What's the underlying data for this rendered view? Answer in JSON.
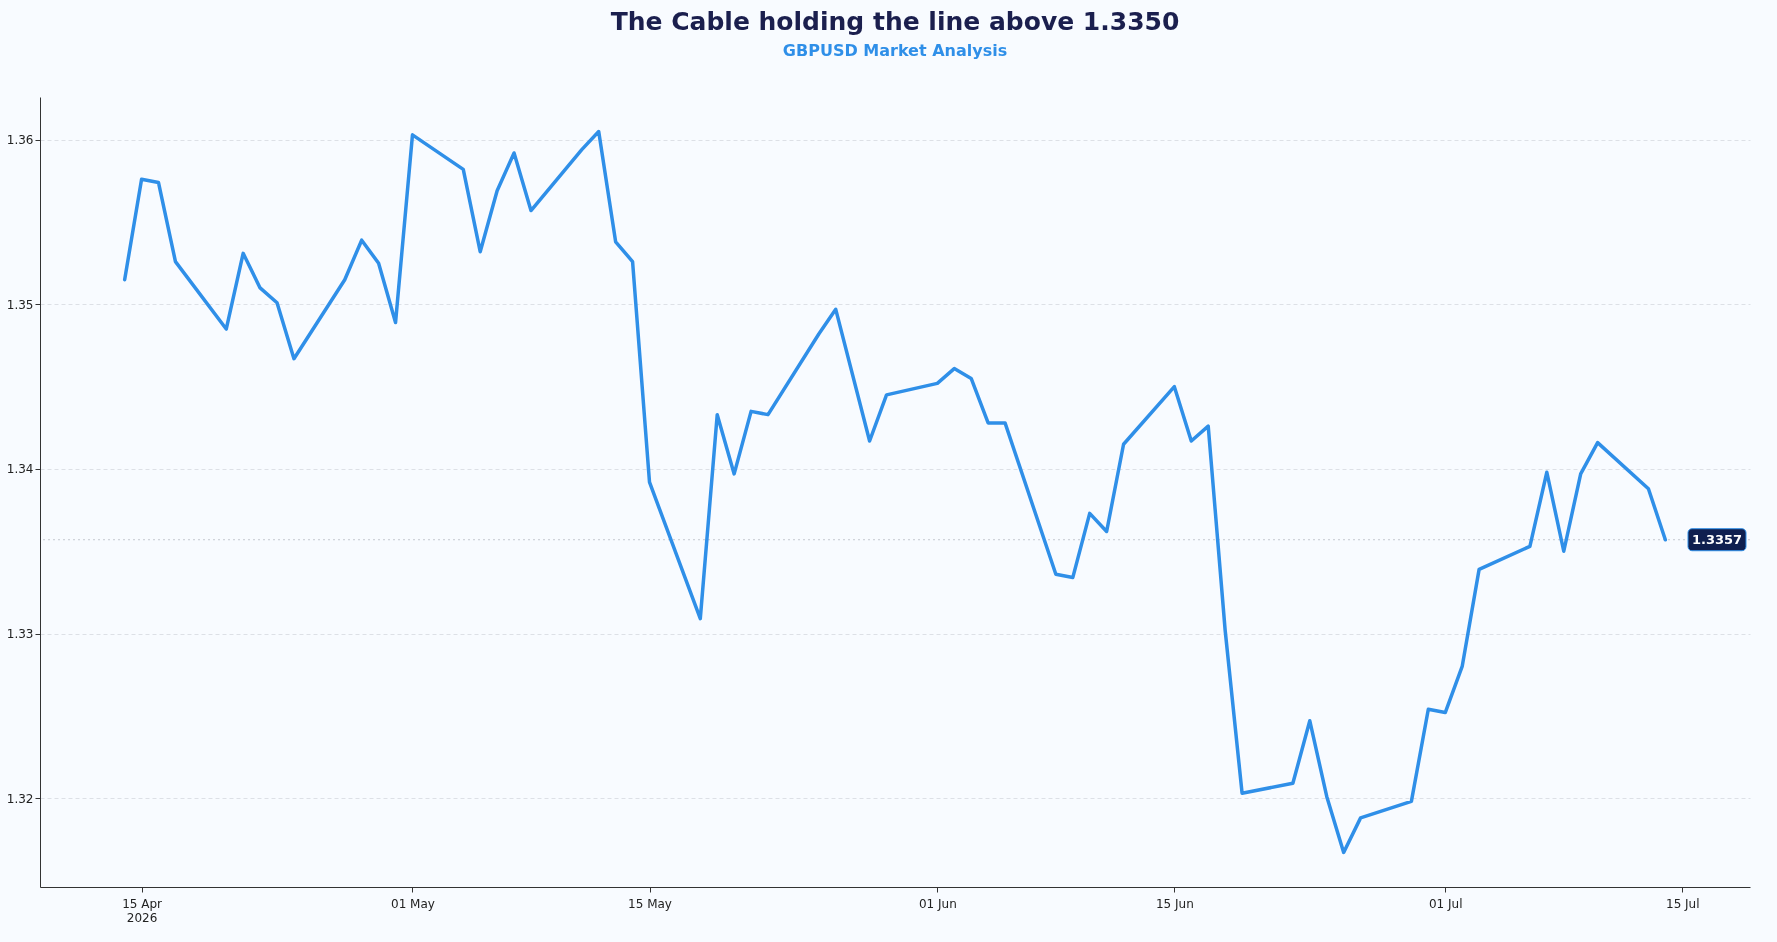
{
  "chart_data": {
    "type": "line",
    "title": "The Cable holding the line above 1.3350",
    "subtitle": "GBPUSD Market Analysis",
    "x": [
      "2026-04-14",
      "2026-04-15",
      "2026-04-16",
      "2026-04-17",
      "2026-04-20",
      "2026-04-21",
      "2026-04-22",
      "2026-04-23",
      "2026-04-24",
      "2026-04-27",
      "2026-04-28",
      "2026-04-29",
      "2026-04-30",
      "2026-05-01",
      "2026-05-04",
      "2026-05-05",
      "2026-05-06",
      "2026-05-07",
      "2026-05-08",
      "2026-05-11",
      "2026-05-12",
      "2026-05-13",
      "2026-05-14",
      "2026-05-15",
      "2026-05-18",
      "2026-05-19",
      "2026-05-20",
      "2026-05-21",
      "2026-05-22",
      "2026-05-25",
      "2026-05-26",
      "2026-05-28",
      "2026-05-29",
      "2026-06-01",
      "2026-06-02",
      "2026-06-03",
      "2026-06-04",
      "2026-06-05",
      "2026-06-08",
      "2026-06-09",
      "2026-06-10",
      "2026-06-11",
      "2026-06-12",
      "2026-06-15",
      "2026-06-16",
      "2026-06-17",
      "2026-06-18",
      "2026-06-19",
      "2026-06-22",
      "2026-06-23",
      "2026-06-24",
      "2026-06-25",
      "2026-06-26",
      "2026-06-29",
      "2026-06-30",
      "2026-07-01",
      "2026-07-02",
      "2026-07-03",
      "2026-07-06",
      "2026-07-07",
      "2026-07-08",
      "2026-07-09",
      "2026-07-10",
      "2026-07-13",
      "2026-07-14"
    ],
    "series": [
      {
        "color": "#2f8fe8",
        "values": [
          1.3515,
          1.3576,
          1.3574,
          1.3526,
          1.3485,
          1.3531,
          1.351,
          1.3501,
          1.3467,
          1.3515,
          1.3539,
          1.3525,
          1.3489,
          1.3603,
          1.3582,
          1.3532,
          1.3569,
          1.3592,
          1.3557,
          1.3594,
          1.3605,
          1.3538,
          1.3526,
          1.3392,
          1.3309,
          1.3433,
          1.3397,
          1.3435,
          1.3433,
          1.3482,
          1.3497,
          1.3417,
          1.3445,
          1.3452,
          1.3461,
          1.3455,
          1.3428,
          1.3428,
          1.3336,
          1.3334,
          1.3373,
          1.3362,
          1.3415,
          1.345,
          1.3417,
          1.3426,
          1.3302,
          1.3203,
          1.3209,
          1.3247,
          1.3201,
          1.3167,
          1.3188,
          1.3198,
          1.3254,
          1.3252,
          1.328,
          1.3339,
          1.3353,
          1.3398,
          1.335,
          1.3397,
          1.3416,
          1.3388,
          1.3357
        ]
      }
    ],
    "xlim": [
      "2026-04-09",
      "2026-07-19"
    ],
    "xticks": [
      {
        "value": "2026-04-15",
        "label": "15 Apr\n2026"
      },
      {
        "value": "2026-05-01",
        "label": "01 May"
      },
      {
        "value": "2026-05-15",
        "label": "15 May"
      },
      {
        "value": "2026-06-01",
        "label": "01 Jun"
      },
      {
        "value": "2026-06-15",
        "label": "15 Jun"
      },
      {
        "value": "2026-07-01",
        "label": "01 Jul"
      },
      {
        "value": "2026-07-15",
        "label": "15 Jul"
      }
    ],
    "ylim": [
      1.3146,
      1.3626
    ],
    "yticks": [
      1.32,
      1.33,
      1.34,
      1.35,
      1.36
    ],
    "grid": "y",
    "line_style": "solid",
    "marker": "none",
    "ref_lines": [
      {
        "axis": "y",
        "value": 1.3357,
        "label": "1.3357",
        "color": "#c4c8d0",
        "line_style": "dotted"
      }
    ]
  }
}
